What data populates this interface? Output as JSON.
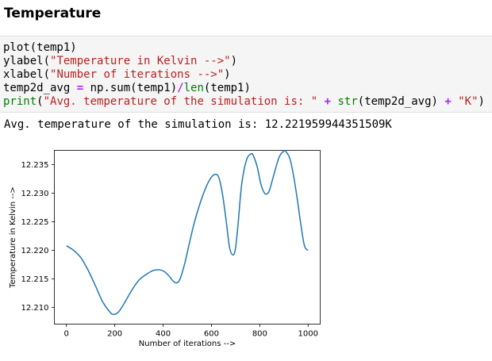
{
  "header": {
    "title": "Temperature"
  },
  "code_cell": {
    "lines": [
      [
        {
          "t": "plot(temp1)",
          "k": "plain"
        }
      ],
      [
        {
          "t": "ylabel(",
          "k": "plain"
        },
        {
          "t": "\"Temperature in Kelvin -->\"",
          "k": "str"
        },
        {
          "t": ")",
          "k": "plain"
        }
      ],
      [
        {
          "t": "xlabel(",
          "k": "plain"
        },
        {
          "t": "\"Number of iterations -->\"",
          "k": "str"
        },
        {
          "t": ")",
          "k": "plain"
        }
      ],
      [
        {
          "t": "temp2d_avg ",
          "k": "plain"
        },
        {
          "t": "=",
          "k": "op"
        },
        {
          "t": " np.sum(temp1)",
          "k": "plain"
        },
        {
          "t": "/",
          "k": "op"
        },
        {
          "t": "len",
          "k": "bi"
        },
        {
          "t": "(temp1)",
          "k": "plain"
        }
      ],
      [
        {
          "t": "print",
          "k": "bi"
        },
        {
          "t": "(",
          "k": "plain"
        },
        {
          "t": "\"Avg. temperature of the simulation is: \"",
          "k": "str"
        },
        {
          "t": " ",
          "k": "plain"
        },
        {
          "t": "+",
          "k": "op"
        },
        {
          "t": " ",
          "k": "plain"
        },
        {
          "t": "str",
          "k": "bi"
        },
        {
          "t": "(temp2d_avg) ",
          "k": "plain"
        },
        {
          "t": "+",
          "k": "op"
        },
        {
          "t": " ",
          "k": "plain"
        },
        {
          "t": "\"K\"",
          "k": "str"
        },
        {
          "t": ")",
          "k": "plain"
        }
      ]
    ]
  },
  "output": {
    "text": "Avg. temperature of the simulation is: 12.221959944351509K"
  },
  "chart_data": {
    "type": "line",
    "title": "",
    "xlabel": "Number of iterations -->",
    "ylabel": "Temperature in Kelvin -->",
    "xlim": [
      -50,
      1050
    ],
    "ylim": [
      12.2071,
      12.2375
    ],
    "x_ticks": [
      0,
      200,
      400,
      600,
      800,
      1000
    ],
    "x_tick_labels": [
      "0",
      "200",
      "400",
      "600",
      "800",
      "1000"
    ],
    "y_ticks": [
      12.21,
      12.215,
      12.22,
      12.225,
      12.23,
      12.235
    ],
    "y_tick_labels": [
      "12.210",
      "12.215",
      "12.220",
      "12.225",
      "12.230",
      "12.235"
    ],
    "grid": false,
    "series": [
      {
        "color": "#1f77b4",
        "x": [
          0,
          30,
          60,
          90,
          120,
          150,
          180,
          195,
          215,
          240,
          270,
          300,
          330,
          360,
          385,
          405,
          425,
          440,
          455,
          470,
          490,
          510,
          530,
          555,
          580,
          600,
          615,
          630,
          645,
          660,
          675,
          690,
          700,
          710,
          725,
          745,
          765,
          775,
          790,
          805,
          820,
          830,
          840,
          860,
          880,
          900,
          910,
          925,
          940,
          955,
          970,
          985,
          1000
        ],
        "y": [
          12.2208,
          12.22,
          12.2187,
          12.2165,
          12.2138,
          12.211,
          12.2092,
          12.2088,
          12.2092,
          12.2108,
          12.213,
          12.2148,
          12.2158,
          12.2165,
          12.2166,
          12.2163,
          12.2155,
          12.2147,
          12.2143,
          12.215,
          12.2178,
          12.2215,
          12.225,
          12.2285,
          12.2313,
          12.2328,
          12.2333,
          12.2328,
          12.23,
          12.2255,
          12.2205,
          12.2192,
          12.2205,
          12.2245,
          12.2315,
          12.2358,
          12.2369,
          12.2364,
          12.2345,
          12.2315,
          12.23,
          12.2299,
          12.2305,
          12.2335,
          12.2363,
          12.2374,
          12.2372,
          12.236,
          12.233,
          12.229,
          12.2245,
          12.2208,
          12.22
        ]
      }
    ]
  }
}
